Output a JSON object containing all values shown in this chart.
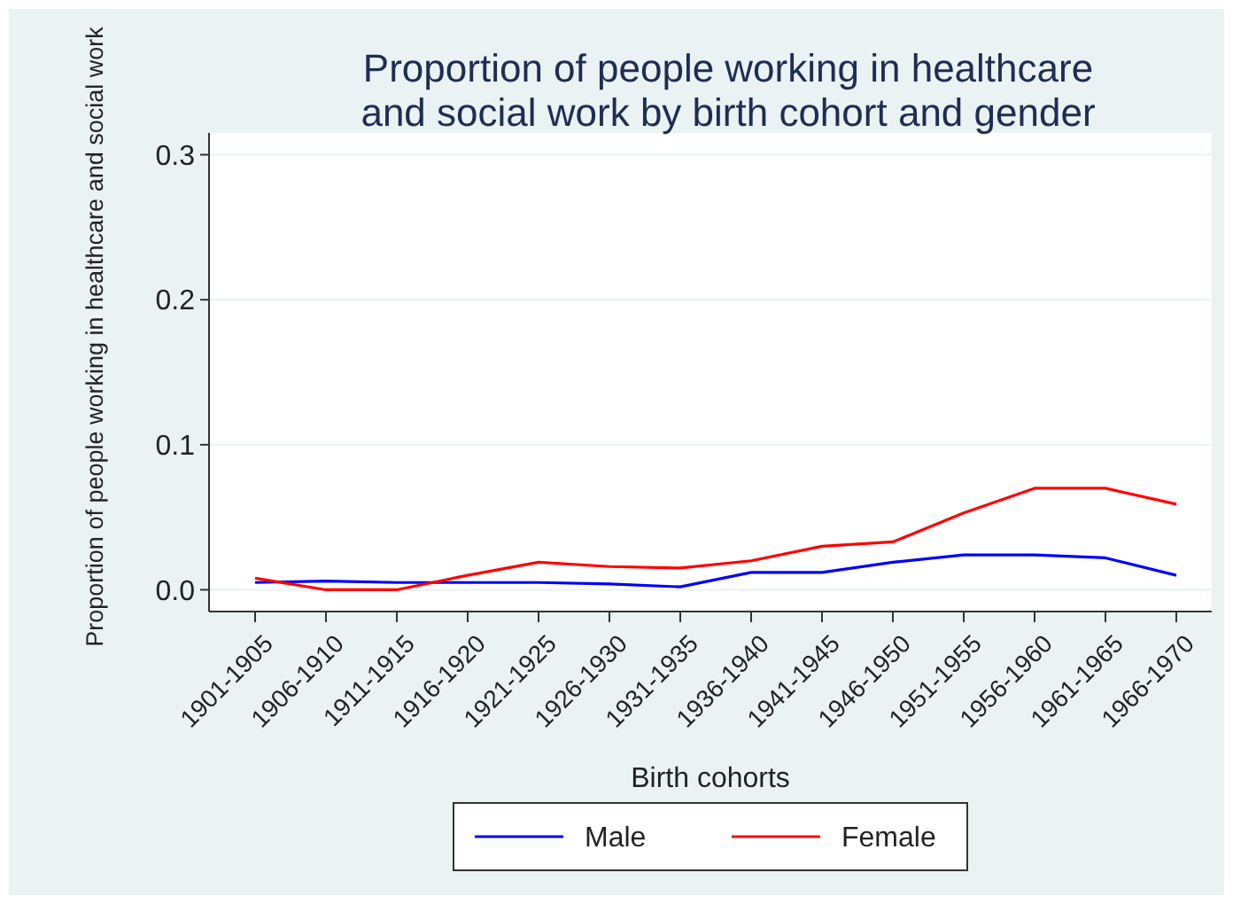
{
  "chart_data": {
    "type": "line",
    "title": "Proportion of people working in healthcare\nand social work by birth cohort and gender",
    "xlabel": "Birth cohorts",
    "ylabel": "Proportion of people working in healthcare and social work",
    "categories": [
      "1901-1905",
      "1906-1910",
      "1911-1915",
      "1916-1920",
      "1921-1925",
      "1926-1930",
      "1931-1935",
      "1936-1940",
      "1941-1945",
      "1946-1950",
      "1951-1955",
      "1956-1960",
      "1961-1965",
      "1966-1970"
    ],
    "series": [
      {
        "name": "Male",
        "color": "#0000ff",
        "values": [
          0.005,
          0.006,
          0.005,
          0.005,
          0.005,
          0.004,
          0.002,
          0.012,
          0.012,
          0.019,
          0.024,
          0.024,
          0.022,
          0.01
        ]
      },
      {
        "name": "Female",
        "color": "#ff0000",
        "values": [
          0.008,
          0,
          0,
          0.01,
          0.019,
          0.016,
          0.015,
          0.02,
          0.03,
          0.033,
          0.053,
          0.07,
          0.07,
          0.059
        ]
      }
    ],
    "ylim": [
      -0.015,
      0.315
    ],
    "yticks": [
      {
        "value": 0,
        "label": "0.0"
      },
      {
        "value": 0.1,
        "label": "0.1"
      },
      {
        "value": 0.2,
        "label": "0.2"
      },
      {
        "value": 0.3,
        "label": "0.3"
      }
    ],
    "grid": "y",
    "legend": "bottom",
    "marker": "none",
    "line_style": "solid"
  }
}
